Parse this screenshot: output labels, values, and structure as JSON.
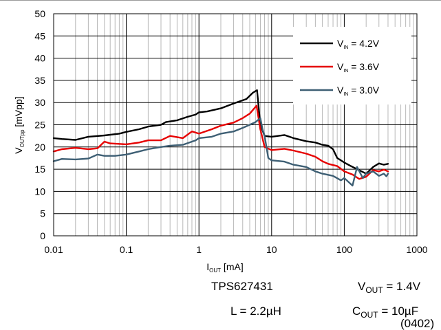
{
  "chart_data": {
    "type": "line",
    "xscale": "log",
    "xlim": [
      0.01,
      1000
    ],
    "ylim": [
      0,
      50
    ],
    "grid": true,
    "legend_position": "top-right",
    "x_ticks": [
      "0.01",
      "0.1",
      "1",
      "10",
      "100",
      "1000"
    ],
    "y_ticks": [
      "0",
      "5",
      "10",
      "15",
      "20",
      "25",
      "30",
      "35",
      "40",
      "45",
      "50"
    ],
    "xlabel": {
      "main": "I",
      "sub": "OUT",
      "rest": " [mA]"
    },
    "ylabel": {
      "main": "V",
      "sub": "OUTpp",
      "rest": " [mVpp]"
    },
    "series": [
      {
        "name": "V_IN = 4.2V",
        "label": {
          "main": "V",
          "sub": "IN",
          "rest": " = 4.2V"
        },
        "color": "#000000",
        "points": [
          [
            0.01,
            22.0
          ],
          [
            0.013,
            21.8
          ],
          [
            0.02,
            21.6
          ],
          [
            0.03,
            22.3
          ],
          [
            0.05,
            22.6
          ],
          [
            0.08,
            23.0
          ],
          [
            0.1,
            23.4
          ],
          [
            0.15,
            24.0
          ],
          [
            0.2,
            24.6
          ],
          [
            0.3,
            25.0
          ],
          [
            0.35,
            25.6
          ],
          [
            0.5,
            26.0
          ],
          [
            0.7,
            26.8
          ],
          [
            0.9,
            27.3
          ],
          [
            1.0,
            27.8
          ],
          [
            1.3,
            28.0
          ],
          [
            2.0,
            28.7
          ],
          [
            3.0,
            29.8
          ],
          [
            4.5,
            30.8
          ],
          [
            5.5,
            32.2
          ],
          [
            6.3,
            32.8
          ],
          [
            7.0,
            25.0
          ],
          [
            8.0,
            22.5
          ],
          [
            10,
            22.3
          ],
          [
            15,
            22.7
          ],
          [
            20,
            22.0
          ],
          [
            30,
            21.3
          ],
          [
            40,
            21.0
          ],
          [
            50,
            20.5
          ],
          [
            60,
            20.3
          ],
          [
            70,
            19.5
          ],
          [
            80,
            17.5
          ],
          [
            100,
            16.5
          ],
          [
            120,
            15.8
          ],
          [
            150,
            15.0
          ],
          [
            200,
            14.0
          ],
          [
            250,
            15.5
          ],
          [
            300,
            16.3
          ],
          [
            350,
            16.0
          ],
          [
            400,
            16.2
          ]
        ]
      },
      {
        "name": "V_IN = 3.6V",
        "label": {
          "main": "V",
          "sub": "IN",
          "rest": " = 3.6V"
        },
        "color": "#e60000",
        "points": [
          [
            0.01,
            19.0
          ],
          [
            0.013,
            19.5
          ],
          [
            0.02,
            19.8
          ],
          [
            0.03,
            19.5
          ],
          [
            0.04,
            19.7
          ],
          [
            0.05,
            21.2
          ],
          [
            0.06,
            20.8
          ],
          [
            0.1,
            20.6
          ],
          [
            0.15,
            21.0
          ],
          [
            0.2,
            21.5
          ],
          [
            0.3,
            21.5
          ],
          [
            0.4,
            22.5
          ],
          [
            0.6,
            22.0
          ],
          [
            0.8,
            23.5
          ],
          [
            1.0,
            23.0
          ],
          [
            1.5,
            24.0
          ],
          [
            2.0,
            24.8
          ],
          [
            3.0,
            25.5
          ],
          [
            4.0,
            26.5
          ],
          [
            5.0,
            27.5
          ],
          [
            6.2,
            29.3
          ],
          [
            7.0,
            24.0
          ],
          [
            8.0,
            20.0
          ],
          [
            10,
            19.3
          ],
          [
            15,
            19.6
          ],
          [
            20,
            19.2
          ],
          [
            30,
            18.5
          ],
          [
            40,
            17.8
          ],
          [
            50,
            16.8
          ],
          [
            60,
            16.2
          ],
          [
            80,
            15.7
          ],
          [
            100,
            14.5
          ],
          [
            130,
            13.8
          ],
          [
            160,
            12.8
          ],
          [
            200,
            13.3
          ],
          [
            250,
            14.8
          ],
          [
            300,
            14.5
          ],
          [
            350,
            14.9
          ],
          [
            400,
            14.5
          ]
        ]
      },
      {
        "name": "V_IN = 3.0V",
        "label": {
          "main": "V",
          "sub": "IN",
          "rest": " = 3.0V"
        },
        "color": "#3e5f74",
        "points": [
          [
            0.01,
            16.8
          ],
          [
            0.013,
            17.3
          ],
          [
            0.02,
            17.2
          ],
          [
            0.03,
            17.4
          ],
          [
            0.04,
            18.3
          ],
          [
            0.05,
            18.0
          ],
          [
            0.07,
            18.0
          ],
          [
            0.1,
            18.3
          ],
          [
            0.15,
            19.0
          ],
          [
            0.2,
            19.5
          ],
          [
            0.3,
            20.0
          ],
          [
            0.4,
            20.3
          ],
          [
            0.6,
            20.5
          ],
          [
            0.9,
            21.5
          ],
          [
            1.0,
            22.0
          ],
          [
            1.5,
            22.3
          ],
          [
            2.0,
            23.0
          ],
          [
            3.0,
            23.5
          ],
          [
            4.0,
            24.3
          ],
          [
            5.0,
            25.0
          ],
          [
            6.0,
            25.6
          ],
          [
            7.0,
            26.5
          ],
          [
            7.5,
            24.0
          ],
          [
            8.0,
            22.5
          ],
          [
            9.0,
            17.5
          ],
          [
            10,
            17.0
          ],
          [
            15,
            16.7
          ],
          [
            20,
            16.0
          ],
          [
            30,
            15.5
          ],
          [
            40,
            14.5
          ],
          [
            50,
            14.0
          ],
          [
            70,
            13.5
          ],
          [
            90,
            12.5
          ],
          [
            100,
            13.0
          ],
          [
            130,
            11.3
          ],
          [
            150,
            15.5
          ],
          [
            180,
            13.0
          ],
          [
            200,
            14.0
          ],
          [
            250,
            14.5
          ],
          [
            300,
            13.5
          ],
          [
            350,
            14.0
          ],
          [
            380,
            13.4
          ],
          [
            400,
            14.0
          ]
        ]
      }
    ]
  },
  "footer": {
    "device": "TPS627431",
    "inductor": "L = 2.2µH",
    "vout": {
      "main": "V",
      "sub": "OUT",
      "rest": " = 1.4V"
    },
    "cout": {
      "main": "C",
      "sub": "OUT",
      "rest": " = 10µF"
    },
    "cout_package": "(0402)"
  }
}
